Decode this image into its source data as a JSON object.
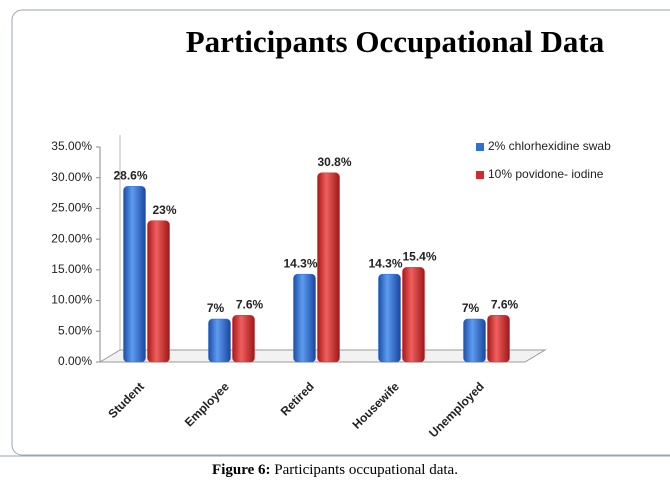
{
  "chart_data": {
    "type": "bar",
    "title": "Participants Occupational Data",
    "categories": [
      "Student",
      "Employee",
      "Retired",
      "Housewife",
      "Unemployed"
    ],
    "series": [
      {
        "name": "2% chlorhexidine swab",
        "color": "#2f6fd6",
        "values": [
          28.6,
          7,
          14.3,
          14.3,
          7
        ],
        "value_labels": [
          "28.6%",
          "7%",
          "14.3%",
          "14.3%",
          "7%"
        ]
      },
      {
        "name": "10% povidone- iodine",
        "color": "#d62a2a",
        "values": [
          23,
          7.6,
          30.8,
          15.4,
          7.6
        ],
        "value_labels": [
          "23%",
          "7.6%",
          "30.8%",
          "15.4%",
          "7.6%"
        ]
      }
    ],
    "ylim": [
      0,
      35
    ],
    "yticks": [
      {
        "value": 0,
        "label": "0.00%"
      },
      {
        "value": 5,
        "label": "5.00%"
      },
      {
        "value": 10,
        "label": "10.00%"
      },
      {
        "value": 15,
        "label": "15.00%"
      },
      {
        "value": 20,
        "label": "20.00%"
      },
      {
        "value": 25,
        "label": "25.00%"
      },
      {
        "value": 30,
        "label": "30.00%"
      },
      {
        "value": 35,
        "label": "35.00%"
      }
    ],
    "legend": "top-right"
  },
  "caption": {
    "label": "Figure 6:",
    "text": "Participants occupational data."
  }
}
